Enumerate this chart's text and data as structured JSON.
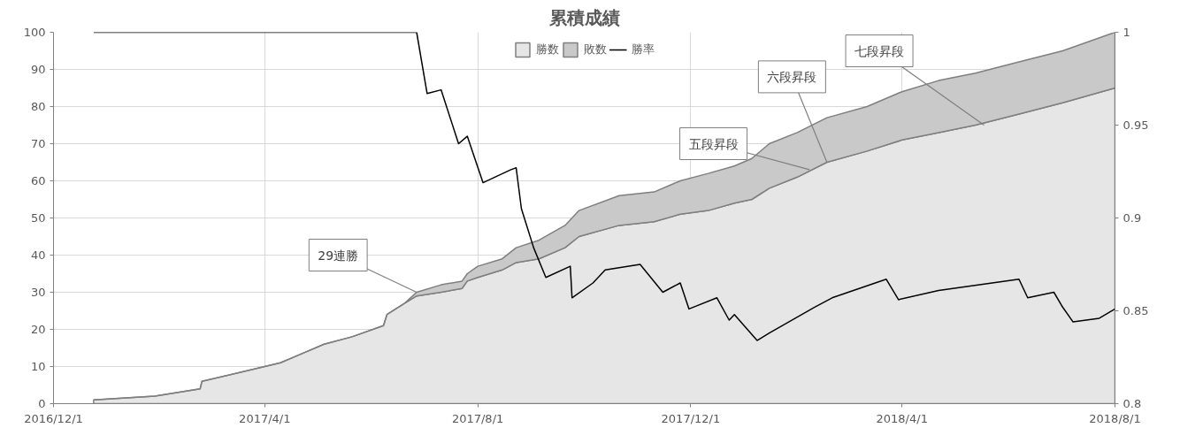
{
  "chart_data": {
    "type": "area",
    "title": "累積成績",
    "stacked": true,
    "legend": "top",
    "grid": true,
    "x": [
      "2016-12-24",
      "2017-01-28",
      "2017-02-23",
      "2017-02-24",
      "2017-04-01",
      "2017-04-10",
      "2017-04-20",
      "2017-05-05",
      "2017-05-21",
      "2017-06-08",
      "2017-06-10",
      "2017-06-20",
      "2017-06-27",
      "2017-07-11",
      "2017-07-23",
      "2017-07-26",
      "2017-08-01",
      "2017-08-15",
      "2017-08-23",
      "2017-09-05",
      "2017-09-20",
      "2017-09-28",
      "2017-10-21",
      "2017-11-10",
      "2017-11-25",
      "2017-12-11",
      "2017-12-26",
      "2018-01-05",
      "2018-01-15",
      "2018-01-31",
      "2018-02-17",
      "2018-03-12",
      "2018-04-01",
      "2018-04-22",
      "2018-05-13",
      "2018-06-07",
      "2018-07-02",
      "2018-08-01"
    ],
    "series": [
      {
        "name": "勝数",
        "color": "#e6e6e6",
        "values": [
          1,
          2,
          4,
          6,
          10,
          11,
          13,
          16,
          18,
          21,
          24,
          27,
          29,
          30,
          31,
          33,
          34,
          36,
          38,
          39,
          42,
          45,
          48,
          49,
          51,
          52,
          54,
          55,
          58,
          61,
          65,
          68,
          71,
          73,
          75,
          78,
          81,
          85
        ]
      },
      {
        "name": "敗数",
        "color": "#c9c9c9",
        "values": [
          0,
          0,
          0,
          0,
          0,
          0,
          0,
          0,
          0,
          0,
          0,
          0,
          1,
          2,
          2,
          2,
          3,
          3,
          4,
          5,
          6,
          7,
          8,
          8,
          9,
          10,
          10,
          11,
          12,
          12,
          12,
          12,
          13,
          14,
          14,
          14,
          14,
          15
        ]
      },
      {
        "name": "勝率",
        "type": "line",
        "axis": "y2",
        "color": "#000000",
        "x": [
          "2016-12-24",
          "2017-06-27",
          "2017-07-03",
          "2017-07-11",
          "2017-07-21",
          "2017-07-26",
          "2017-08-04",
          "2017-08-20",
          "2017-08-23",
          "2017-08-26",
          "2017-09-02",
          "2017-09-09",
          "2017-09-23",
          "2017-09-24",
          "2017-10-06",
          "2017-10-13",
          "2017-11-02",
          "2017-11-15",
          "2017-11-25",
          "2017-11-30",
          "2017-12-16",
          "2017-12-23",
          "2017-12-26",
          "2018-01-08",
          "2018-01-15",
          "2018-02-10",
          "2018-02-20",
          "2018-03-23",
          "2018-03-30",
          "2018-04-22",
          "2018-06-07",
          "2018-06-12",
          "2018-06-27",
          "2018-07-02",
          "2018-07-08",
          "2018-07-23",
          "2018-08-01"
        ],
        "values": [
          1,
          1,
          0.967,
          0.969,
          0.94,
          0.944,
          0.919,
          0.926,
          0.927,
          0.905,
          0.884,
          0.868,
          0.874,
          0.857,
          0.865,
          0.872,
          0.875,
          0.86,
          0.865,
          0.851,
          0.857,
          0.845,
          0.848,
          0.834,
          0.838,
          0.852,
          0.857,
          0.867,
          0.856,
          0.861,
          0.867,
          0.857,
          0.86,
          0.852,
          0.844,
          0.846,
          0.851
        ]
      }
    ],
    "xlim": [
      "2016-12-01",
      "2018-08-01"
    ],
    "xticks": [
      {
        "value": "2016-12-01",
        "label": "2016/12/1"
      },
      {
        "value": "2017-04-01",
        "label": "2017/4/1"
      },
      {
        "value": "2017-08-01",
        "label": "2017/8/1"
      },
      {
        "value": "2017-12-01",
        "label": "2017/12/1"
      },
      {
        "value": "2018-04-01",
        "label": "2018/4/1"
      },
      {
        "value": "2018-08-01",
        "label": "2018/8/1"
      }
    ],
    "ylim": [
      0,
      100
    ],
    "yticks": [
      0,
      10,
      20,
      30,
      40,
      50,
      60,
      70,
      80,
      90,
      100
    ],
    "y2lim": [
      0.8,
      1
    ],
    "y2ticks": [
      0.8,
      0.85,
      0.9,
      0.95,
      1
    ],
    "annotations": [
      {
        "text": "29連勝",
        "x": "2017-06-27",
        "y": 30
      },
      {
        "text": "五段昇段",
        "x": "2018-02-07",
        "y": 63
      },
      {
        "text": "六段昇段",
        "x": "2018-02-17",
        "y": 65
      },
      {
        "text": "七段昇段",
        "x": "2018-05-18",
        "y": 75
      }
    ]
  }
}
